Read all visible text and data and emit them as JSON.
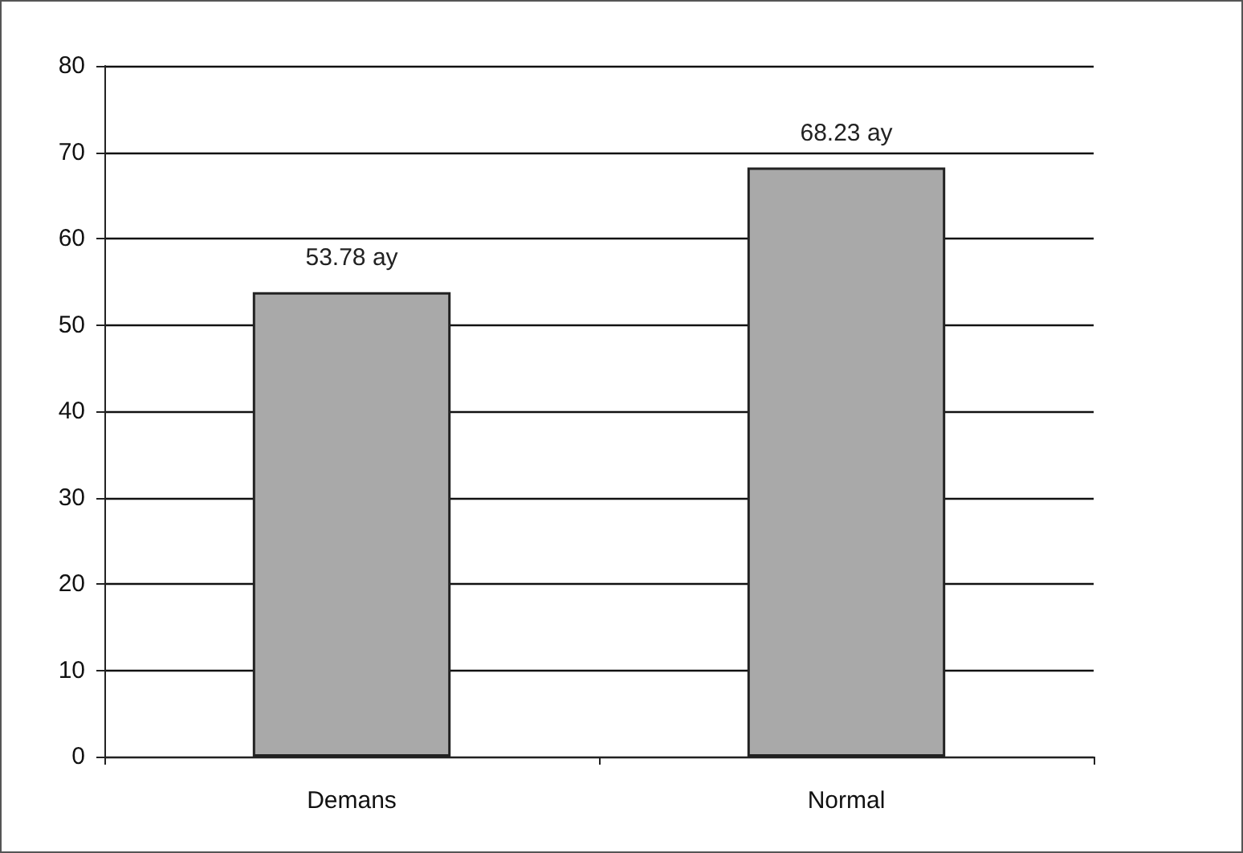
{
  "chart_data": {
    "type": "bar",
    "categories": [
      "Demans",
      "Normal"
    ],
    "values": [
      53.78,
      68.23
    ],
    "value_labels": [
      "53.78 ay",
      "68.23 ay"
    ],
    "color": "#a9a9a9",
    "ylim": [
      0,
      80
    ],
    "yticks": [
      0,
      10,
      20,
      30,
      40,
      50,
      60,
      70,
      80
    ],
    "grid": "y"
  }
}
